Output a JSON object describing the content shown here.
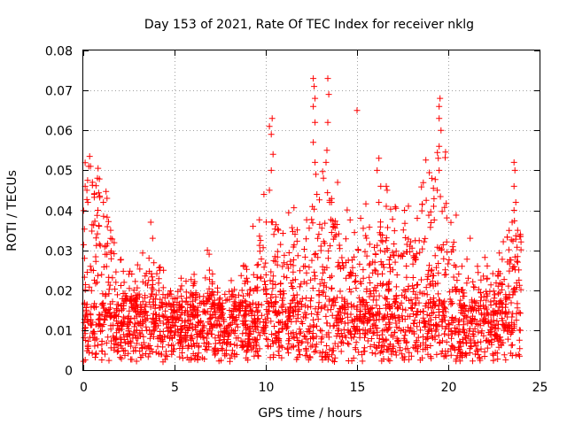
{
  "chart_data": {
    "type": "scatter",
    "title": "Day 153 of 2021, Rate Of TEC Index for receiver nklg",
    "xlabel": "GPS time / hours",
    "ylabel": "ROTI / TECUs",
    "xlim": [
      0,
      25
    ],
    "ylim": [
      0,
      0.08
    ],
    "x_ticks": [
      0,
      5,
      10,
      15,
      20,
      25
    ],
    "x_tick_labels": [
      "0",
      "5",
      "10",
      "15",
      "20",
      "25"
    ],
    "y_ticks": [
      0,
      0.01,
      0.02,
      0.03,
      0.04,
      0.05,
      0.06,
      0.07,
      0.08
    ],
    "y_tick_labels": [
      "0",
      "0.01",
      "0.02",
      "0.03",
      "0.04",
      "0.05",
      "0.06",
      "0.07",
      "0.08"
    ],
    "grid": true,
    "marker": "+",
    "color": "#ff0000",
    "series": [
      {
        "name": "ROTI",
        "data_range_hours": [
          0,
          24
        ],
        "baseline_range": [
          0.002,
          0.017
        ],
        "notable_points": [
          {
            "x": 0.1,
            "y": 0.046
          },
          {
            "x": 0.2,
            "y": 0.045
          },
          {
            "x": 0.25,
            "y": 0.042
          },
          {
            "x": 0.3,
            "y": 0.051
          },
          {
            "x": 0.35,
            "y": 0.0535
          },
          {
            "x": 0.4,
            "y": 0.051
          },
          {
            "x": 0.5,
            "y": 0.047
          },
          {
            "x": 0.6,
            "y": 0.044
          },
          {
            "x": 0.8,
            "y": 0.04
          },
          {
            "x": 1.1,
            "y": 0.042
          },
          {
            "x": 1.3,
            "y": 0.043
          },
          {
            "x": 1.5,
            "y": 0.035
          },
          {
            "x": 2.5,
            "y": 0.024
          },
          {
            "x": 3.6,
            "y": 0.028
          },
          {
            "x": 3.7,
            "y": 0.037
          },
          {
            "x": 3.8,
            "y": 0.033
          },
          {
            "x": 4.2,
            "y": 0.025
          },
          {
            "x": 4.4,
            "y": 0.025
          },
          {
            "x": 6.8,
            "y": 0.03
          },
          {
            "x": 6.9,
            "y": 0.029
          },
          {
            "x": 9.3,
            "y": 0.036
          },
          {
            "x": 10.2,
            "y": 0.061
          },
          {
            "x": 10.3,
            "y": 0.059
          },
          {
            "x": 10.35,
            "y": 0.063
          },
          {
            "x": 10.4,
            "y": 0.054
          },
          {
            "x": 10.3,
            "y": 0.05
          },
          {
            "x": 10.2,
            "y": 0.045
          },
          {
            "x": 11.6,
            "y": 0.034
          },
          {
            "x": 12.6,
            "y": 0.073
          },
          {
            "x": 12.65,
            "y": 0.071
          },
          {
            "x": 12.7,
            "y": 0.068
          },
          {
            "x": 12.6,
            "y": 0.066
          },
          {
            "x": 12.7,
            "y": 0.062
          },
          {
            "x": 12.6,
            "y": 0.057
          },
          {
            "x": 12.7,
            "y": 0.052
          },
          {
            "x": 12.75,
            "y": 0.049
          },
          {
            "x": 12.8,
            "y": 0.044
          },
          {
            "x": 13.4,
            "y": 0.073
          },
          {
            "x": 13.45,
            "y": 0.069
          },
          {
            "x": 13.4,
            "y": 0.062
          },
          {
            "x": 13.35,
            "y": 0.055
          },
          {
            "x": 13.3,
            "y": 0.052
          },
          {
            "x": 13.5,
            "y": 0.042
          },
          {
            "x": 13.6,
            "y": 0.042
          },
          {
            "x": 13.7,
            "y": 0.036
          },
          {
            "x": 15.0,
            "y": 0.065
          },
          {
            "x": 15.2,
            "y": 0.038
          },
          {
            "x": 16.1,
            "y": 0.05
          },
          {
            "x": 16.2,
            "y": 0.053
          },
          {
            "x": 16.3,
            "y": 0.046
          },
          {
            "x": 16.2,
            "y": 0.042
          },
          {
            "x": 16.6,
            "y": 0.046
          },
          {
            "x": 16.65,
            "y": 0.045
          },
          {
            "x": 16.6,
            "y": 0.041
          },
          {
            "x": 17.6,
            "y": 0.04
          },
          {
            "x": 18.3,
            "y": 0.038
          },
          {
            "x": 19.5,
            "y": 0.066
          },
          {
            "x": 19.55,
            "y": 0.068
          },
          {
            "x": 19.5,
            "y": 0.063
          },
          {
            "x": 19.6,
            "y": 0.06
          },
          {
            "x": 19.5,
            "y": 0.056
          },
          {
            "x": 19.45,
            "y": 0.053
          },
          {
            "x": 19.5,
            "y": 0.05
          },
          {
            "x": 19.1,
            "y": 0.048
          },
          {
            "x": 19.4,
            "y": 0.045
          },
          {
            "x": 19.2,
            "y": 0.041
          },
          {
            "x": 21.2,
            "y": 0.033
          },
          {
            "x": 21.6,
            "y": 0.026
          },
          {
            "x": 23.6,
            "y": 0.052
          },
          {
            "x": 23.65,
            "y": 0.05
          },
          {
            "x": 23.6,
            "y": 0.046
          },
          {
            "x": 23.7,
            "y": 0.042
          },
          {
            "x": 23.6,
            "y": 0.04
          },
          {
            "x": 23.5,
            "y": 0.037
          },
          {
            "x": 23.8,
            "y": 0.035
          },
          {
            "x": 9.9,
            "y": 0.044
          },
          {
            "x": 17.9,
            "y": 0.031
          },
          {
            "x": 20.3,
            "y": 0.032
          }
        ]
      }
    ]
  }
}
